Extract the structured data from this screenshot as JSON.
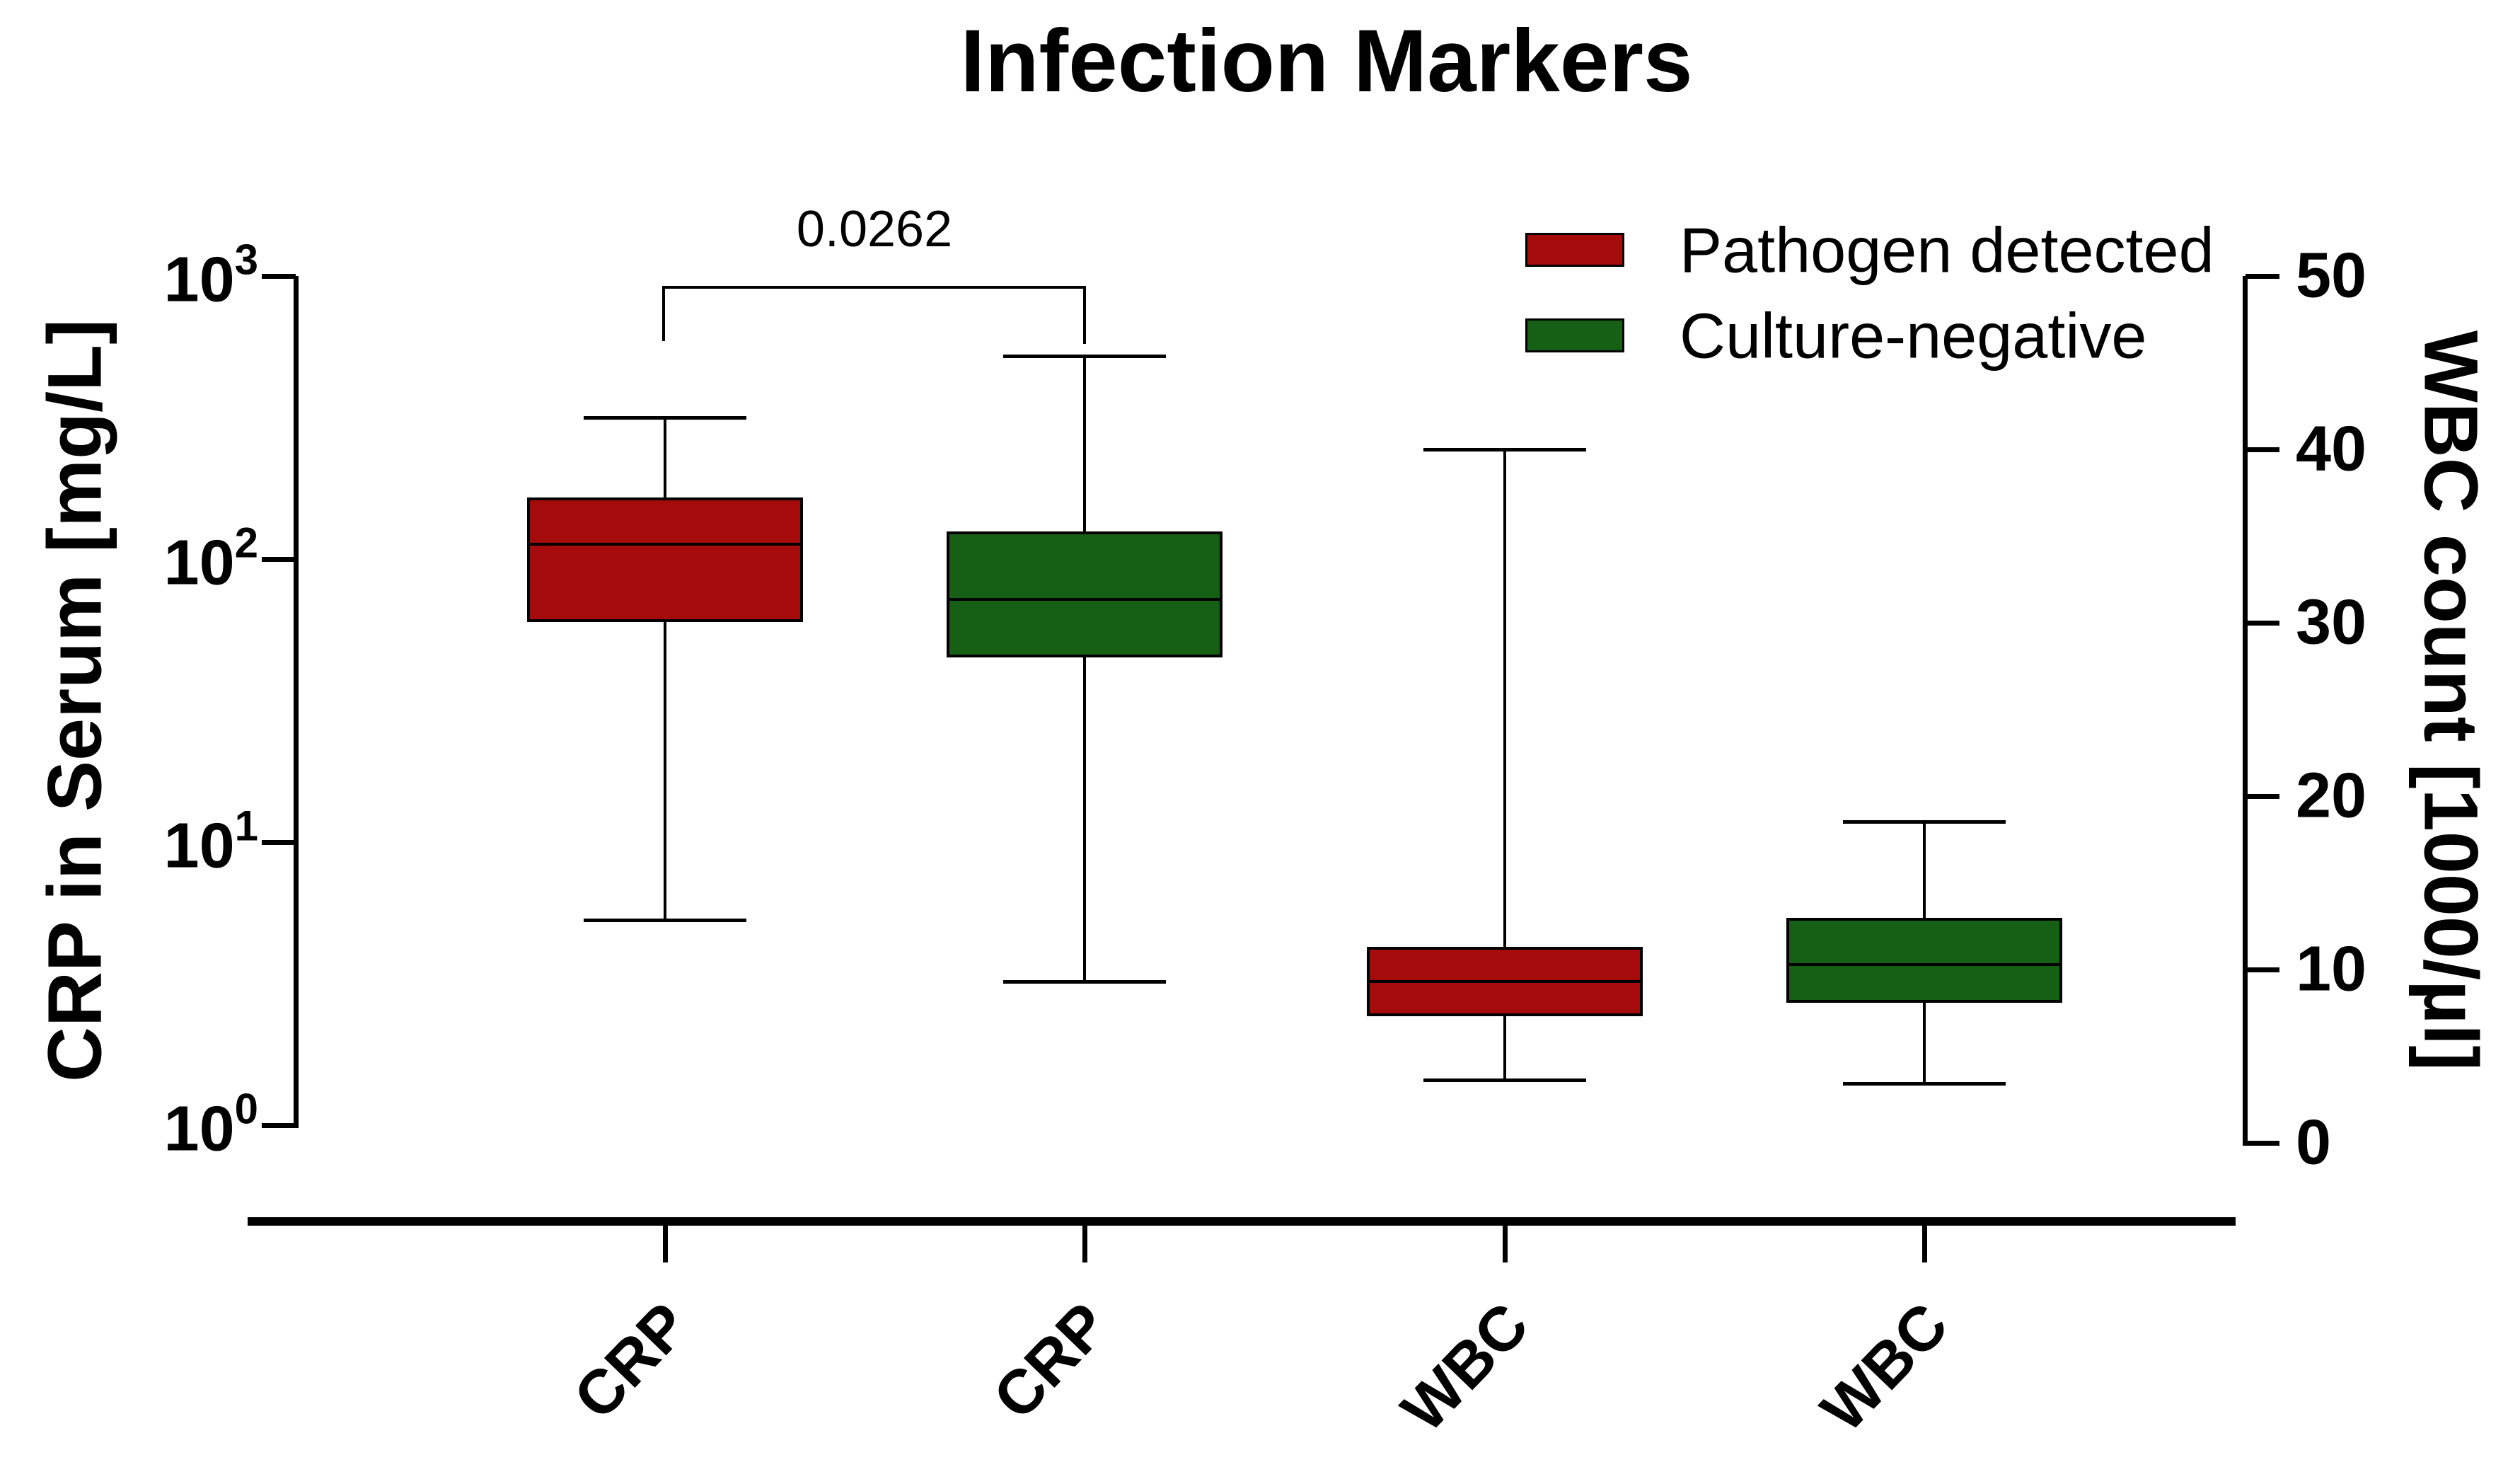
{
  "title": "Infection Markers",
  "significance": {
    "label": "0.0262",
    "between_groups": [
      0,
      1
    ]
  },
  "legend": {
    "items": [
      {
        "label": "Pathogen detected",
        "color": "#A50B0B"
      },
      {
        "label": "Culture-negative",
        "color": "#156015"
      }
    ]
  },
  "axes": {
    "left": {
      "title": "CRP in Serum [mg/L]",
      "scale": "log10",
      "tick_exponents": [
        3,
        2,
        1,
        0
      ],
      "range_exponents": [
        0,
        3
      ]
    },
    "right": {
      "title": "WBC count [1000/µl]",
      "scale": "linear",
      "ticks": [
        50,
        40,
        30,
        20,
        10,
        0
      ],
      "range": [
        0,
        50
      ]
    },
    "x": {
      "categories": [
        "CRP",
        "CRP",
        "WBC",
        "WBC"
      ]
    }
  },
  "chart_data": {
    "type": "boxplot",
    "legend_position": "top-right",
    "grid": false,
    "groups": [
      {
        "x_label": "CRP",
        "series": "Pathogen detected",
        "axis": "left",
        "unit": "mg/L",
        "color": "#A50B0B",
        "min": 5.3,
        "q1": 60,
        "median": 113,
        "q3": 165,
        "max": 315
      },
      {
        "x_label": "CRP",
        "series": "Culture-negative",
        "axis": "left",
        "unit": "mg/L",
        "color": "#156015",
        "min": 3.2,
        "q1": 45,
        "median": 72,
        "q3": 125,
        "max": 520
      },
      {
        "x_label": "WBC",
        "series": "Pathogen detected",
        "axis": "right",
        "unit": "1000/µl",
        "color": "#A50B0B",
        "min": 3.6,
        "q1": 7.3,
        "median": 9.3,
        "q3": 11.3,
        "max": 40
      },
      {
        "x_label": "WBC",
        "series": "Culture-negative",
        "axis": "right",
        "unit": "1000/µl",
        "color": "#156015",
        "min": 3.4,
        "q1": 8.1,
        "median": 10.3,
        "q3": 13,
        "max": 18.5
      }
    ]
  }
}
